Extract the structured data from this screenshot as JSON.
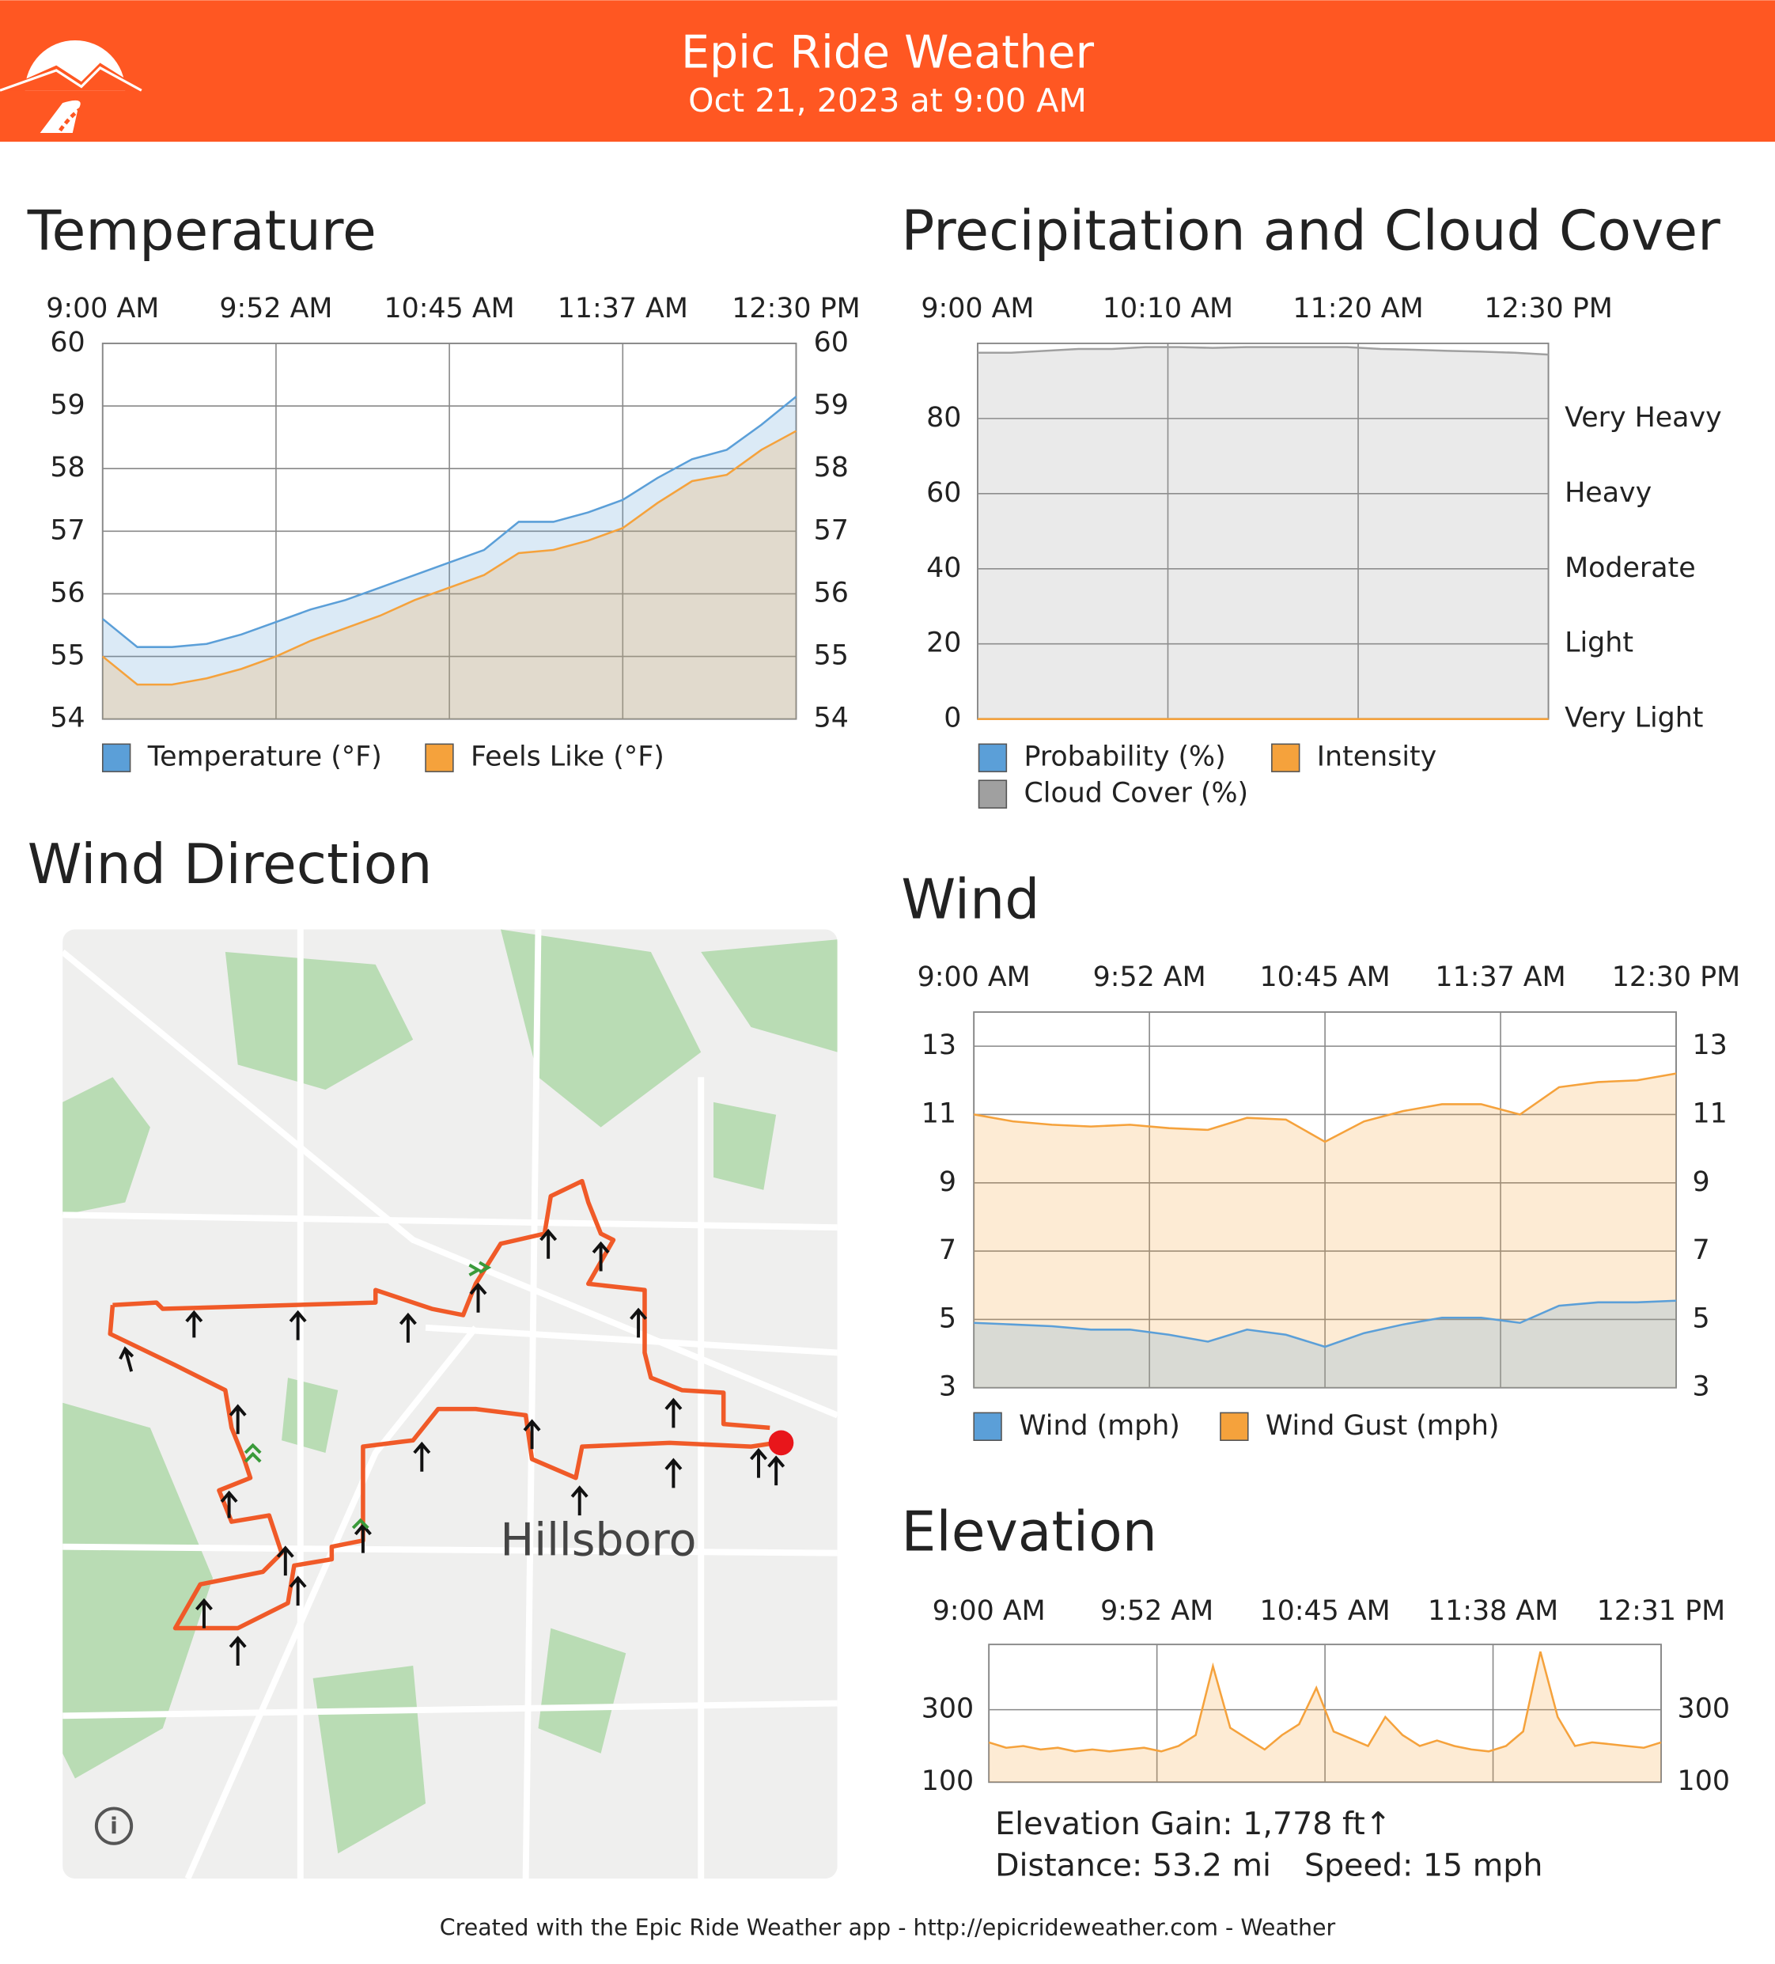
{
  "header": {
    "title": "Epic Ride Weather",
    "subtitle": "Oct 21, 2023 at 9:00 AM"
  },
  "chart_data": [
    {
      "type": "area",
      "title": "Temperature",
      "xticks": [
        "9:00 AM",
        "9:52 AM",
        "10:45 AM",
        "11:37 AM",
        "12:30 PM"
      ],
      "ylim": [
        54,
        60
      ],
      "yticks": [
        54,
        55,
        56,
        57,
        58,
        59,
        60
      ],
      "mirror_y_axis": true,
      "grid": true,
      "series": [
        {
          "name": "Temperature (°F)",
          "color": "#5b9fd8",
          "values": [
            55.6,
            55.15,
            55.15,
            55.2,
            55.35,
            55.55,
            55.75,
            55.9,
            56.1,
            56.3,
            56.5,
            56.7,
            57.15,
            57.15,
            57.3,
            57.5,
            57.85,
            58.15,
            58.3,
            58.7,
            59.15
          ]
        },
        {
          "name": "Feels Like (°F)",
          "color": "#f5a23c",
          "values": [
            55.0,
            54.55,
            54.55,
            54.65,
            54.8,
            55.0,
            55.25,
            55.45,
            55.65,
            55.9,
            56.1,
            56.3,
            56.65,
            56.7,
            56.85,
            57.05,
            57.45,
            57.8,
            57.9,
            58.3,
            58.6
          ]
        }
      ]
    },
    {
      "type": "area",
      "title": "Precipitation and Cloud Cover",
      "xticks": [
        "9:00 AM",
        "10:10 AM",
        "11:20 AM",
        "12:30 PM"
      ],
      "ylim": [
        0,
        100
      ],
      "yticks": [
        0,
        20,
        40,
        60,
        80
      ],
      "y2lim": [
        0,
        5
      ],
      "y2ticks": [
        {
          "value": 0,
          "label": "Very Light"
        },
        {
          "value": 1,
          "label": "Light"
        },
        {
          "value": 2,
          "label": "Moderate"
        },
        {
          "value": 3,
          "label": "Heavy"
        },
        {
          "value": 4,
          "label": "Very Heavy"
        }
      ],
      "grid": true,
      "series": [
        {
          "name": "Probability (%)",
          "color": "#5b9fd8",
          "values": [
            0,
            0,
            0,
            0,
            0,
            0,
            0,
            0,
            0,
            0
          ]
        },
        {
          "name": "Intensity",
          "color": "#f5a23c",
          "axis": "y2",
          "values": [
            0,
            0,
            0,
            0,
            0,
            0,
            0,
            0,
            0,
            0
          ]
        },
        {
          "name": "Cloud Cover (%)",
          "color": "#a0a0a0",
          "values": [
            97.5,
            97.5,
            98,
            98.5,
            98.5,
            99,
            99,
            98.8,
            99,
            99,
            99,
            99,
            98.5,
            98.3,
            98,
            97.8,
            97.5,
            97
          ]
        }
      ]
    },
    {
      "type": "area",
      "title": "Wind",
      "xticks": [
        "9:00 AM",
        "9:52 AM",
        "10:45 AM",
        "11:37 AM",
        "12:30 PM"
      ],
      "ylim": [
        3,
        14
      ],
      "yticks": [
        3,
        5,
        7,
        9,
        11,
        13
      ],
      "mirror_y_axis": true,
      "grid": true,
      "series": [
        {
          "name": "Wind (mph)",
          "color": "#5b9fd8",
          "values": [
            4.9,
            4.85,
            4.8,
            4.7,
            4.7,
            4.55,
            4.35,
            4.7,
            4.55,
            4.2,
            4.6,
            4.85,
            5.05,
            5.05,
            4.9,
            5.4,
            5.5,
            5.5,
            5.55
          ]
        },
        {
          "name": "Wind Gust (mph)",
          "color": "#f5a23c",
          "values": [
            11.0,
            10.8,
            10.7,
            10.65,
            10.7,
            10.6,
            10.55,
            10.9,
            10.85,
            10.2,
            10.8,
            11.1,
            11.3,
            11.3,
            11.0,
            11.8,
            11.95,
            12.0,
            12.2
          ]
        }
      ]
    },
    {
      "type": "area",
      "title": "Elevation",
      "xticks": [
        "9:00 AM",
        "9:52 AM",
        "10:45 AM",
        "11:38 AM",
        "12:31 PM"
      ],
      "ylim": [
        100,
        480
      ],
      "yticks": [
        100,
        300
      ],
      "mirror_y_axis": true,
      "grid": true,
      "color": "#f5a23c",
      "values": [
        210,
        195,
        200,
        190,
        195,
        185,
        190,
        185,
        190,
        195,
        185,
        200,
        230,
        420,
        250,
        220,
        190,
        230,
        260,
        360,
        240,
        220,
        200,
        280,
        230,
        200,
        215,
        200,
        190,
        185,
        200,
        240,
        460,
        280,
        200,
        210,
        205,
        200,
        195,
        210
      ]
    }
  ],
  "map": {
    "title": "Wind Direction",
    "place": "Hillsboro"
  },
  "stats": {
    "gain": "Elevation Gain: 1,778 ft↑",
    "distance": "Distance: 53.2 mi",
    "speed": "Speed: 15 mph"
  },
  "footer": "Created with the Epic Ride Weather app - http://epicrideweather.com - Weather"
}
